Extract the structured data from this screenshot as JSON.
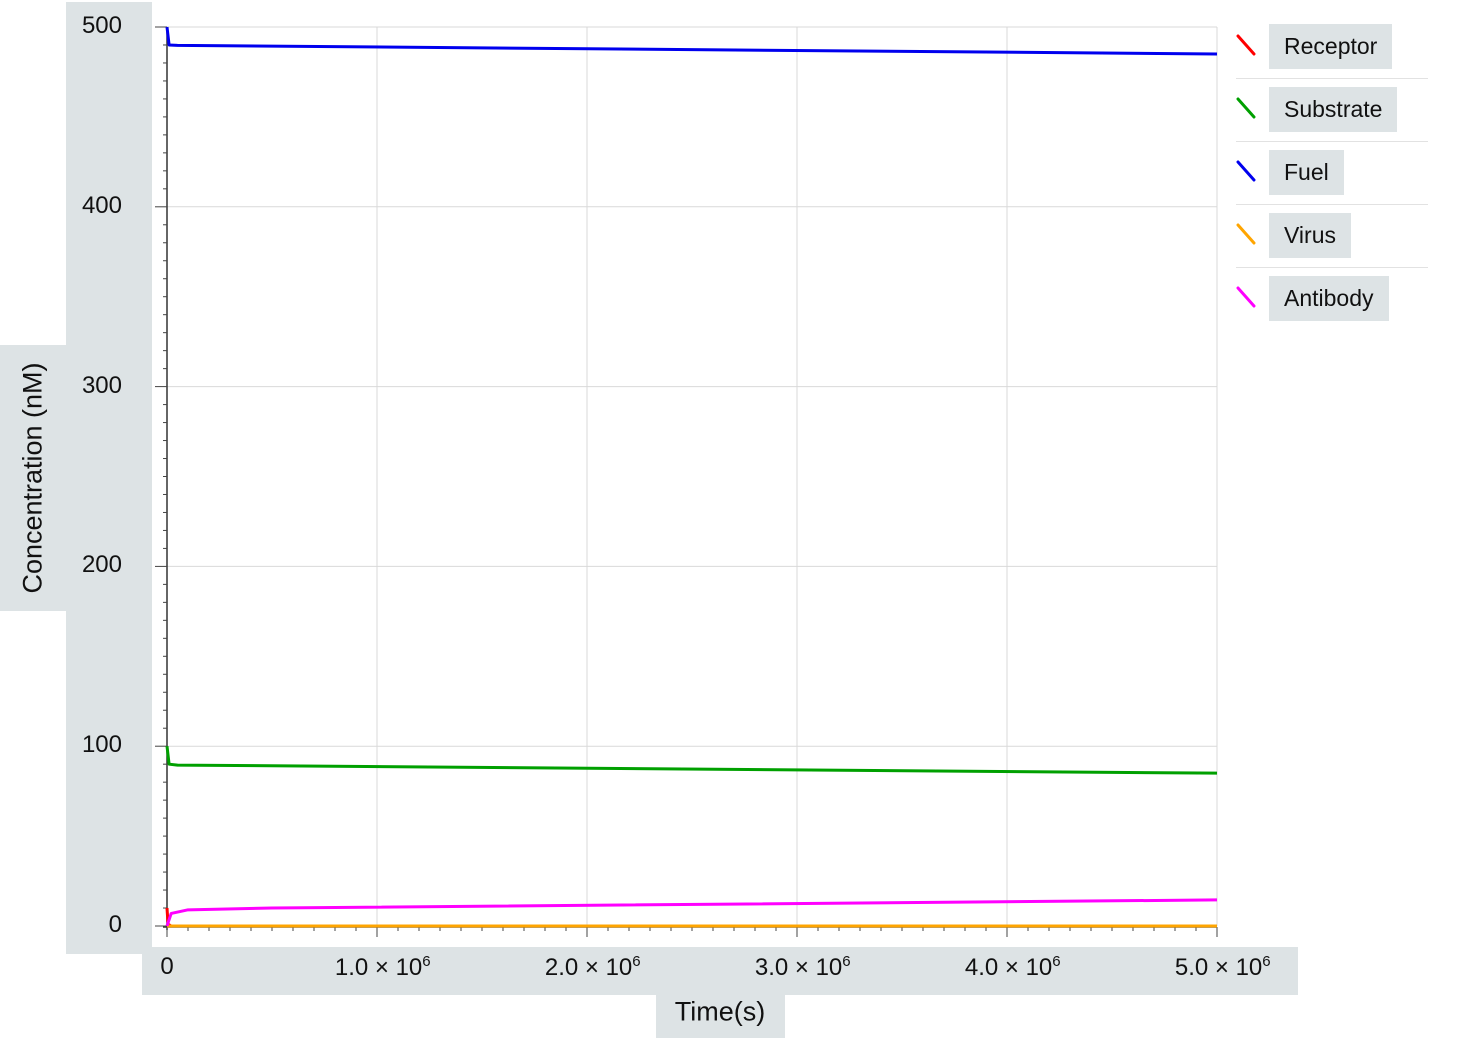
{
  "chart_data": {
    "type": "line",
    "xlabel": "Time(s)",
    "ylabel": "Concentration (nM)",
    "xlim": [
      0,
      5000000
    ],
    "ylim": [
      0,
      500
    ],
    "x_ticks": [
      {
        "value": 0,
        "label": "0"
      },
      {
        "value": 1000000,
        "label": "1.0 × 10",
        "exp": "6"
      },
      {
        "value": 2000000,
        "label": "2.0 × 10",
        "exp": "6"
      },
      {
        "value": 3000000,
        "label": "3.0 × 10",
        "exp": "6"
      },
      {
        "value": 4000000,
        "label": "4.0 × 10",
        "exp": "6"
      },
      {
        "value": 5000000,
        "label": "5.0 × 10",
        "exp": "6"
      }
    ],
    "y_ticks": [
      {
        "value": 0,
        "label": "0"
      },
      {
        "value": 100,
        "label": "100"
      },
      {
        "value": 200,
        "label": "200"
      },
      {
        "value": 300,
        "label": "300"
      },
      {
        "value": 400,
        "label": "400"
      },
      {
        "value": 500,
        "label": "500"
      }
    ],
    "grid": true,
    "legend_position": "right",
    "series": [
      {
        "name": "Receptor",
        "color": "#ff0000",
        "points": [
          [
            0,
            10
          ],
          [
            5000,
            1
          ],
          [
            20000,
            0
          ],
          [
            5000000,
            0
          ]
        ]
      },
      {
        "name": "Substrate",
        "color": "#00a000",
        "points": [
          [
            0,
            100
          ],
          [
            10000,
            90
          ],
          [
            50000,
            89.5
          ],
          [
            5000000,
            85
          ]
        ]
      },
      {
        "name": "Fuel",
        "color": "#0000ee",
        "points": [
          [
            0,
            500
          ],
          [
            10000,
            490
          ],
          [
            50000,
            489.8
          ],
          [
            5000000,
            485
          ]
        ]
      },
      {
        "name": "Virus",
        "color": "#ffa500",
        "points": [
          [
            0,
            0
          ],
          [
            5000000,
            0
          ]
        ]
      },
      {
        "name": "Antibody",
        "color": "#ff00ff",
        "points": [
          [
            0,
            0
          ],
          [
            20000,
            7
          ],
          [
            100000,
            9
          ],
          [
            500000,
            10
          ],
          [
            5000000,
            14.5
          ]
        ]
      }
    ]
  }
}
